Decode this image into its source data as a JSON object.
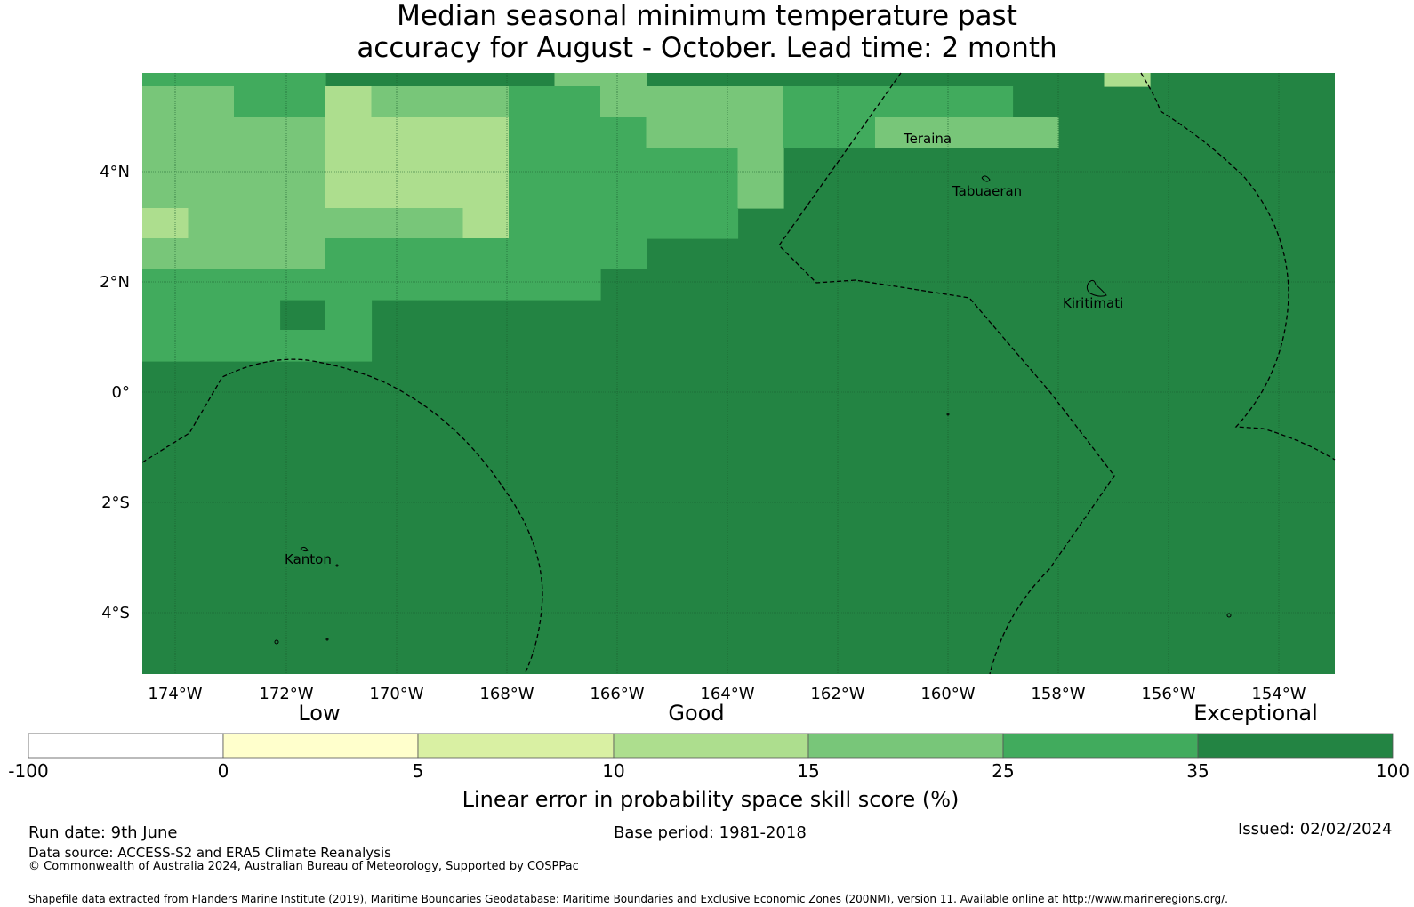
{
  "title": {
    "line1": "Median seasonal minimum temperature past",
    "line2": "accuracy for August - October. Lead time: 2 month"
  },
  "map": {
    "lon_ticks": [
      "174°W",
      "172°W",
      "170°W",
      "168°W",
      "166°W",
      "164°W",
      "162°W",
      "160°W",
      "158°W",
      "156°W",
      "154°W"
    ],
    "lat_ticks": [
      "4°N",
      "2°N",
      "0°",
      "2°S",
      "4°S"
    ],
    "places": [
      "Teraina",
      "Tabuaeran",
      "Kiritimati",
      "Kanton"
    ],
    "colors": {
      "c10": "#ADDE8E",
      "c15": "#78C679",
      "c25": "#41AB5D",
      "c35": "#238443"
    },
    "grid_rows": [
      "1111000002200000000003000000",
      "2211322211222211111000000000",
      "2222433311122211222200000000",
      "2222433311111200000000000000",
      "4222222311111000000000000000",
      "2222111111100000000000000000",
      "1111111111000000000000000000",
      "1110100000000000000000000000",
      "1111100000000000000000000000"
    ]
  },
  "colorbar": {
    "categories": [
      "Low",
      "Good",
      "Exceptional"
    ],
    "tick_labels": [
      "-100",
      "0",
      "5",
      "10",
      "15",
      "25",
      "35",
      "100"
    ],
    "colors": [
      "#FFFFFF",
      "#FFFFCC",
      "#D9F0A3",
      "#ADDE8E",
      "#78C679",
      "#41AB5D",
      "#238443"
    ],
    "axis_label": "Linear error in probability space skill score (%)"
  },
  "footer": {
    "run_date": "Run date: 9th June",
    "base_period": "Base period: 1981-2018",
    "issued": "Issued: 02/02/2024",
    "data_source": "Data source: ACCESS-S2 and ERA5 Climate Reanalysis",
    "copyright": "© Commonwealth of Australia 2024, Australian Bureau of Meteorology, Supported by COSPPac",
    "shapefile": "Shapefile data extracted from Flanders Marine Institute (2019), Maritime Boundaries Geodatabase: Maritime Boundaries and Exclusive Economic Zones (200NM), version 11. Available online at http://www.marineregions.org/."
  }
}
